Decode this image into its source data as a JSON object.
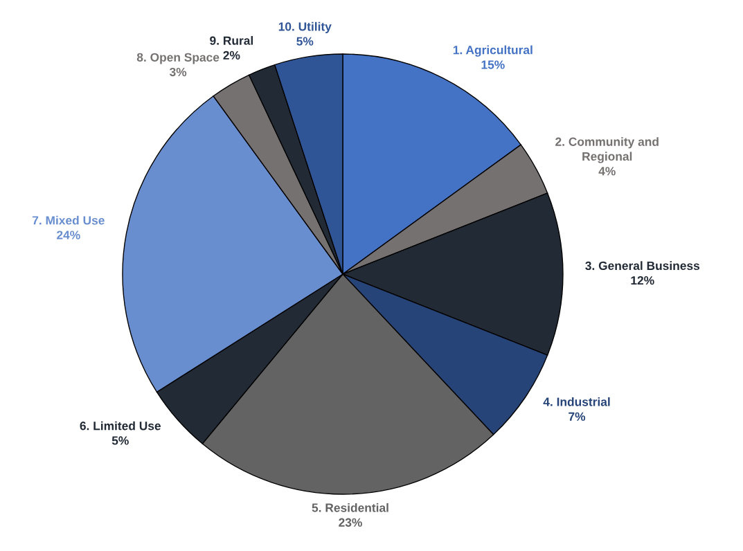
{
  "chart_data": {
    "type": "pie",
    "categories": [
      "1. Agricultural",
      "2. Community and\nRegional",
      "3. General Business",
      "4. Industrial",
      "5. Residential",
      "6. Limited Use",
      "7. Mixed Use",
      "8. Open Space",
      "9. Rural",
      "10. Utility"
    ],
    "values": [
      15,
      4,
      12,
      7,
      23,
      5,
      24,
      3,
      2,
      5
    ],
    "value_labels": [
      "15%",
      "4%",
      "12%",
      "7%",
      "23%",
      "5%",
      "24%",
      "3%",
      "2%",
      "5%"
    ],
    "colors": [
      "#4472c4",
      "#767171",
      "#222a35",
      "#264478",
      "#636363",
      "#222a35",
      "#698ed0",
      "#767171",
      "#222a35",
      "#2f5597"
    ],
    "legend": false
  }
}
